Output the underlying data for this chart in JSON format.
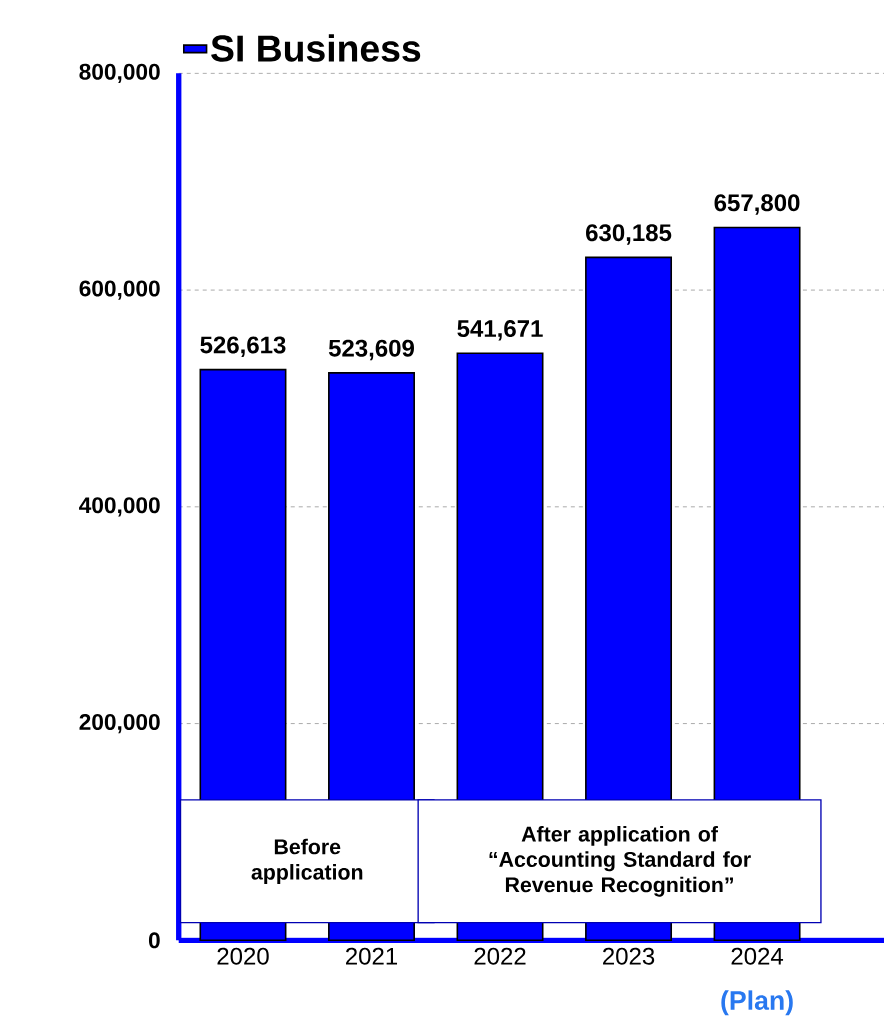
{
  "chart_data": {
    "type": "bar",
    "categories": [
      "2020",
      "2021",
      "2022",
      "2023",
      "2024"
    ],
    "series": [
      {
        "name": "SI Business",
        "color": "#0000ff",
        "values": [
          526613,
          523609,
          541671,
          630185,
          657800
        ],
        "value_labels": [
          "526,613",
          "523,609",
          "541,671",
          "630,185",
          "657,800"
        ]
      }
    ],
    "ylim": [
      0,
      800000
    ],
    "yticks": [
      {
        "value": 0,
        "label": "0"
      },
      {
        "value": 200000,
        "label": "200,000"
      },
      {
        "value": 400000,
        "label": "400,000"
      },
      {
        "value": 600000,
        "label": "600,000"
      },
      {
        "value": 800000,
        "label": "800,000"
      }
    ],
    "grid": "y",
    "legend": "top left",
    "annotations": [
      "Before application",
      "After application of “Accounting Standard for Revenue Recognition”",
      "(Plan)"
    ]
  }
}
